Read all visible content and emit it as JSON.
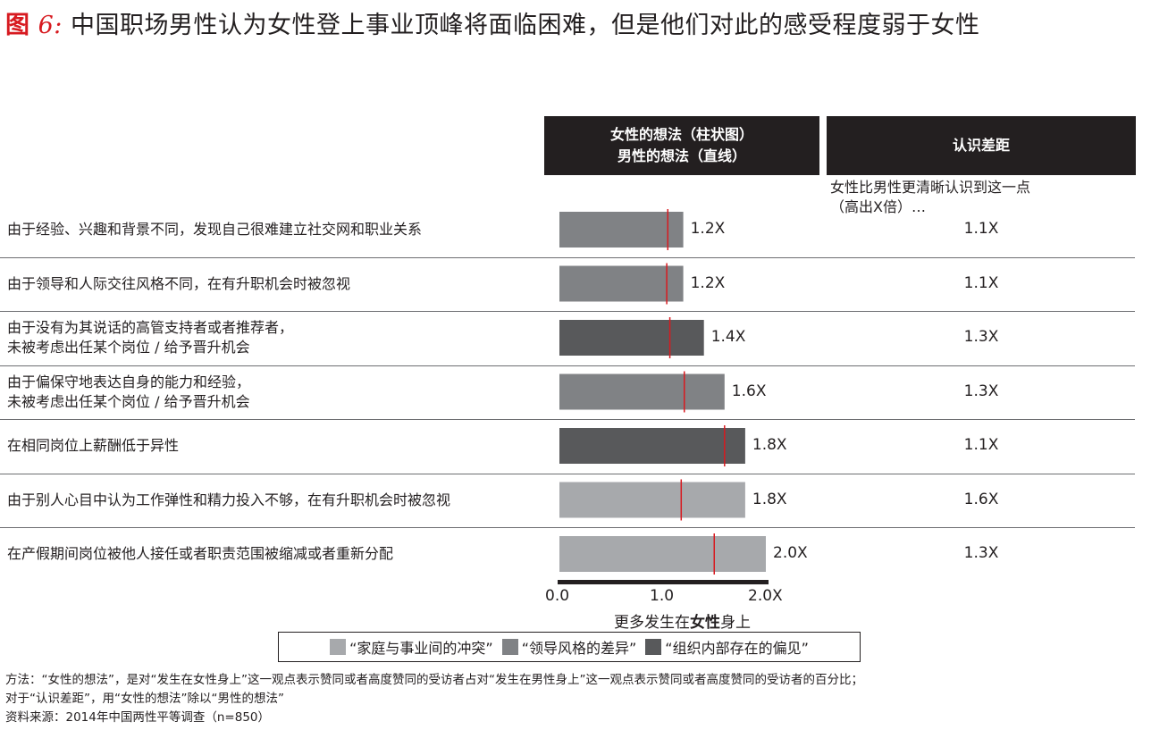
{
  "title": {
    "label": "图",
    "number": "6:",
    "text": "中国职场男性认为女性登上事业顶峰将面临困难，但是他们对此的感受程度弱于女性"
  },
  "headers": {
    "bars_line1": "女性的想法（柱状图）",
    "bars_line2": "男性的想法（直线）",
    "gap": "认识差距"
  },
  "gap_subtitle_line1": "女性比男性更清晰认识到这一点",
  "gap_subtitle_line2": "（高出X倍）…",
  "colors": {
    "family": "#a7a9ac",
    "leadership": "#808285",
    "bias": "#58595b",
    "men_line": "#d71a20",
    "header_bg": "#231f20"
  },
  "chart_data": {
    "type": "bar",
    "orientation": "horizontal",
    "xlim": [
      0,
      2
    ],
    "x_ticks": [
      "0.0",
      "1.0",
      "2.0X"
    ],
    "xlabel_prefix": "更多发生在",
    "xlabel_bold": "女性",
    "xlabel_suffix": "身上",
    "rows": [
      {
        "label": [
          "由于经验、兴趣和背景不同，发现自己很难建立社交网和职业关系"
        ],
        "women": 1.2,
        "women_label": "1.2X",
        "men": 1.05,
        "gap": "1.1X",
        "category": "leadership"
      },
      {
        "label": [
          "由于领导和人际交往风格不同，在有升职机会时被忽视"
        ],
        "women": 1.2,
        "women_label": "1.2X",
        "men": 1.04,
        "gap": "1.1X",
        "category": "leadership"
      },
      {
        "label": [
          "由于没有为其说话的高管支持者或者推荐者，",
          "未被考虑出任某个岗位 / 给予晋升机会"
        ],
        "women": 1.4,
        "women_label": "1.4X",
        "men": 1.07,
        "gap": "1.3X",
        "category": "bias"
      },
      {
        "label": [
          "由于偏保守地表达自身的能力和经验，",
          "未被考虑出任某个岗位 / 给予晋升机会"
        ],
        "women": 1.6,
        "women_label": "1.6X",
        "men": 1.21,
        "gap": "1.3X",
        "category": "leadership"
      },
      {
        "label": [
          "在相同岗位上薪酬低于异性"
        ],
        "women": 1.8,
        "women_label": "1.8X",
        "men": 1.6,
        "gap": "1.1X",
        "category": "bias"
      },
      {
        "label": [
          "由于别人心目中认为工作弹性和精力投入不够，在有升职机会时被忽视"
        ],
        "women": 1.8,
        "women_label": "1.8X",
        "men": 1.18,
        "gap": "1.6X",
        "category": "family"
      },
      {
        "label": [
          "在产假期间岗位被他人接任或者职责范围被缩减或者重新分配"
        ],
        "women": 2.0,
        "women_label": "2.0X",
        "men": 1.5,
        "gap": "1.3X",
        "category": "family"
      }
    ],
    "legend": [
      {
        "name": "“家庭与事业间的冲突”",
        "category": "family"
      },
      {
        "name": "“领导风格的差异”",
        "category": "leadership"
      },
      {
        "name": "“组织内部存在的偏见”",
        "category": "bias"
      }
    ]
  },
  "notes": {
    "method_line1": "方法：“女性的想法”，是对“发生在女性身上”这一观点表示赞同或者高度赞同的受访者占对“发生在男性身上”这一观点表示赞同或者高度赞同的受访者的百分比；",
    "method_line2": "对于“认识差距”，用“女性的想法”除以“男性的想法”",
    "source": "资料来源：2014年中国两性平等调查（n=850）"
  }
}
